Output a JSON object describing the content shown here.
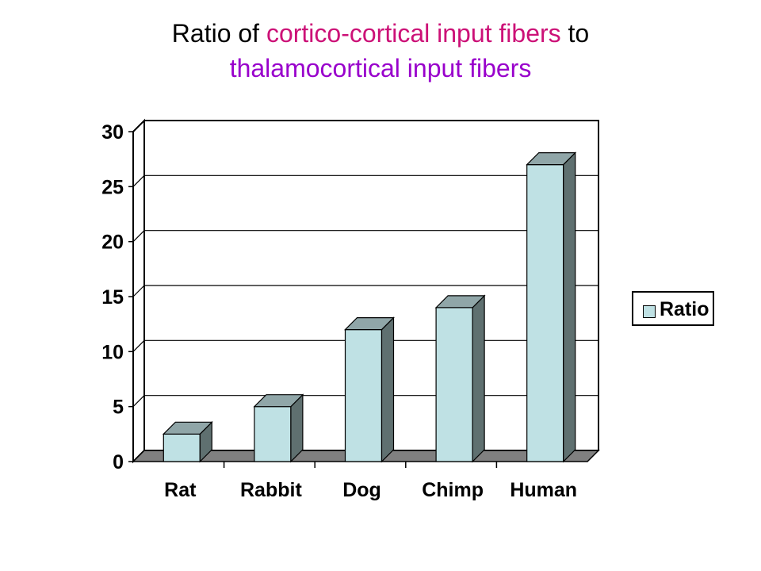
{
  "title": {
    "part1": "Ratio of ",
    "part2": "cortico-cortical input fibers",
    "part3": " to",
    "part4": "thalamocortical input fibers",
    "colors": {
      "plain": "#000000",
      "pink": "#cc1177",
      "purple": "#9900cc"
    }
  },
  "chart_data": {
    "type": "bar",
    "title": "Ratio of cortico-cortical input fibers to thalamocortical input fibers",
    "categories": [
      "Rat",
      "Rabbit",
      "Dog",
      "Chimp",
      "Human"
    ],
    "series": [
      {
        "name": "Ratio",
        "values": [
          2.5,
          5,
          12,
          14,
          27
        ]
      }
    ],
    "ylim": [
      0,
      30
    ],
    "yticks": [
      0,
      5,
      10,
      15,
      20,
      25,
      30
    ],
    "grid": true,
    "legend_position": "right",
    "style": "3d-column",
    "colors": {
      "bar_front": "#bfe1e4",
      "bar_side": "#5f7070",
      "bar_top": "#90a6a8",
      "floor": "#808080"
    }
  }
}
